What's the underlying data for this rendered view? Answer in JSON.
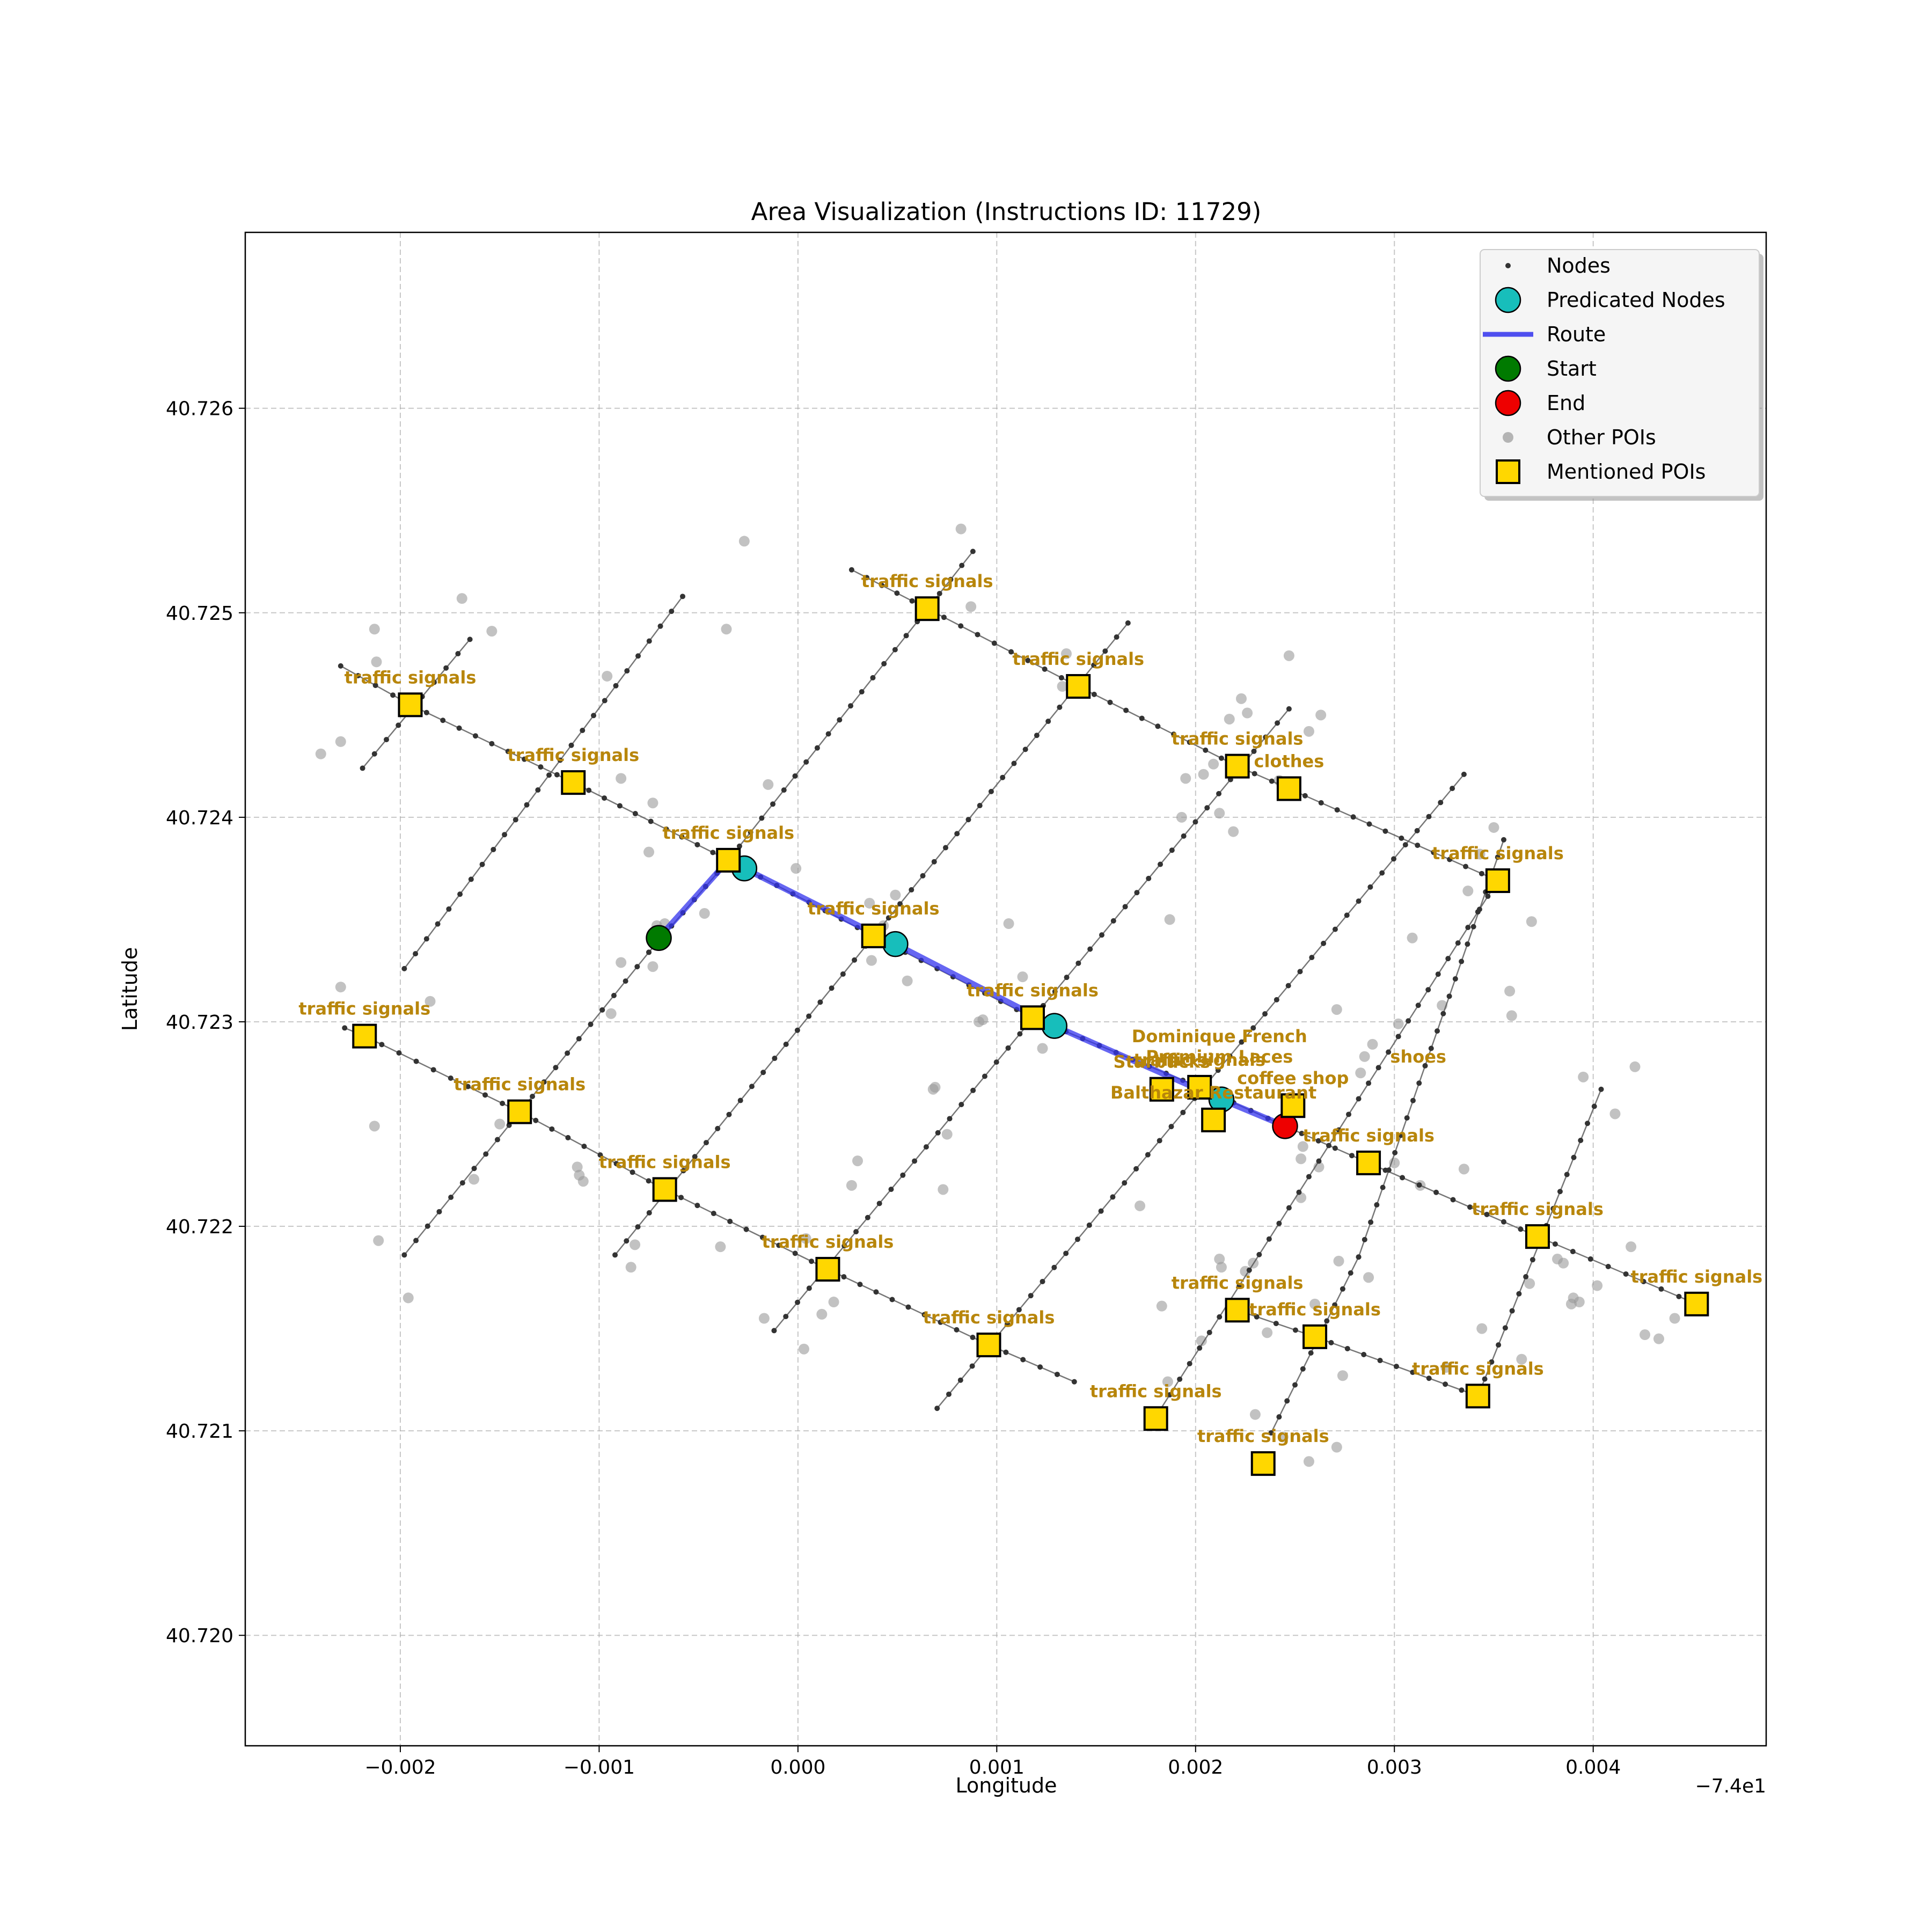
{
  "chart_data": {
    "type": "scatter",
    "title": "Area Visualization (Instructions ID: 11729)",
    "xlabel": "Longitude",
    "ylabel": "Latitude",
    "x_offset_label": "−7.4e1",
    "xlim": [
      -0.00278,
      0.00487
    ],
    "ylim": [
      40.71946,
      40.72686
    ],
    "x_ticks": [
      -0.002,
      -0.001,
      0.0,
      0.001,
      0.002,
      0.003,
      0.004
    ],
    "x_tick_labels": [
      "−0.002",
      "−0.001",
      "0.000",
      "0.001",
      "0.002",
      "0.003",
      "0.004"
    ],
    "y_ticks": [
      40.72,
      40.721,
      40.722,
      40.723,
      40.724,
      40.725,
      40.726
    ],
    "y_tick_labels": [
      "40.720",
      "40.721",
      "40.722",
      "40.723",
      "40.724",
      "40.725",
      "40.726"
    ],
    "grid": true,
    "legend_position": "upper-right",
    "legend": [
      "Nodes",
      "Predicated Nodes",
      "Route",
      "Start",
      "End",
      "Other POIs",
      "Mentioned POIs"
    ],
    "colors": {
      "nodes": "#333333",
      "streets": "#555555",
      "predicated": "#17bebb",
      "route": "#3333ee",
      "start": "#007a00",
      "end": "#ee0000",
      "other_pois": "#999999",
      "mentioned": "#ffd700",
      "poi_label": "#b8860b"
    },
    "streets": [
      [
        [
          -0.0023,
          40.72474
        ],
        [
          -0.00195,
          40.72455
        ],
        [
          -0.00113,
          40.72417
        ],
        [
          -0.00035,
          40.72379
        ],
        [
          0.00038,
          40.72342
        ],
        [
          0.00118,
          40.72302
        ],
        [
          0.00202,
          40.72268
        ],
        [
          0.00245,
          40.72249
        ],
        [
          0.00287,
          40.72231
        ],
        [
          0.00372,
          40.72195
        ],
        [
          0.00452,
          40.72162
        ]
      ],
      [
        [
          -0.00228,
          40.72297
        ],
        [
          -0.00218,
          40.72293
        ],
        [
          -0.0014,
          40.72256
        ],
        [
          -0.00067,
          40.72218
        ],
        [
          0.00015,
          40.72179
        ],
        [
          0.00096,
          40.72142
        ],
        [
          0.00139,
          40.72124
        ]
      ],
      [
        [
          0.00027,
          40.72521
        ],
        [
          0.00065,
          40.72502
        ],
        [
          0.00141,
          40.72464
        ],
        [
          0.00221,
          40.72425
        ],
        [
          0.00247,
          40.72414
        ],
        [
          0.00352,
          40.72369
        ]
      ],
      [
        [
          0.00221,
          40.72159
        ],
        [
          0.0026,
          40.72146
        ],
        [
          0.00342,
          40.72117
        ]
      ],
      [
        [
          -0.00219,
          40.72424
        ],
        [
          -0.00165,
          40.72487
        ]
      ],
      [
        [
          -0.00198,
          40.72186
        ],
        [
          -0.00075,
          40.72334
        ],
        [
          -0.00035,
          40.72379
        ],
        [
          0.00088,
          40.7253
        ]
      ],
      [
        [
          -0.00198,
          40.72326
        ],
        [
          -0.00058,
          40.72508
        ]
      ],
      [
        [
          -0.00092,
          40.72186
        ],
        [
          0.00166,
          40.72495
        ]
      ],
      [
        [
          -0.00012,
          40.72149
        ],
        [
          0.00247,
          40.72453
        ]
      ],
      [
        [
          0.0007,
          40.72111
        ],
        [
          0.00335,
          40.72421
        ]
      ],
      [
        [
          0.00182,
          40.7211
        ],
        [
          0.00352,
          40.72369
        ]
      ],
      [
        [
          0.00238,
          40.72099
        ],
        [
          0.00282,
          40.72185
        ],
        [
          0.00355,
          40.72389
        ]
      ],
      [
        [
          0.00342,
          40.72117
        ],
        [
          0.00404,
          40.72267
        ]
      ]
    ],
    "nodes": {
      "count": 400,
      "description_x": [],
      "description_y": []
    },
    "route": {
      "x": [
        -0.0007,
        -0.00035,
        -0.00027,
        0.00049,
        0.00129,
        0.00213,
        0.00245
      ],
      "y": [
        40.72341,
        40.72379,
        40.72375,
        40.72338,
        40.72298,
        40.72262,
        40.72249
      ]
    },
    "predicated_nodes": {
      "x": [
        -0.00027,
        0.00049,
        0.00129,
        0.00213
      ],
      "y": [
        40.72375,
        40.72338,
        40.72298,
        40.72262
      ]
    },
    "start": {
      "x": -0.0007,
      "y": 40.72341
    },
    "end": {
      "x": 0.00245,
      "y": 40.72249
    },
    "other_pois": {
      "x": [
        -0.0024,
        -0.0023,
        -0.00213,
        -0.00212,
        -0.00169,
        -0.00154,
        -0.0023,
        -0.00185,
        -0.00213,
        -0.00163,
        -0.00096,
        -0.00089,
        -0.00073,
        -0.00075,
        -0.00067,
        -0.00047,
        -0.00036,
        -0.00027,
        -0.00015,
        -1e-05,
        -0.00094,
        -0.00089,
        -0.00073,
        -0.00071,
        -0.00084,
        -0.00111,
        -0.0011,
        -0.00108,
        -0.00082,
        -0.0015,
        -0.00211,
        -0.00196,
        -0.00039,
        -0.00017,
        3e-05,
        4e-05,
        0.00012,
        0.00018,
        0.00027,
        0.0003,
        0.00036,
        0.00043,
        0.00049,
        0.00055,
        0.00045,
        0.00037,
        0.00068,
        0.00069,
        0.00073,
        0.00075,
        0.00082,
        0.00087,
        0.00091,
        0.00093,
        0.00106,
        0.00113,
        0.00123,
        0.00133,
        0.00135,
        0.00187,
        0.00193,
        0.00195,
        0.00204,
        0.00209,
        0.00212,
        0.00219,
        0.00217,
        0.00223,
        0.00226,
        0.00247,
        0.00257,
        0.00263,
        0.00242,
        0.00271,
        0.00289,
        0.00302,
        0.00309,
        0.00324,
        0.00337,
        0.00343,
        0.0035,
        0.00358,
        0.00369,
        0.00359,
        0.00335,
        0.00395,
        0.00411,
        0.00421,
        0.00419,
        0.00385,
        0.00389,
        0.00368,
        0.00382,
        0.00393,
        0.00402,
        0.00426,
        0.00441,
        0.00433,
        0.00254,
        0.00262,
        0.00283,
        0.003,
        0.00313,
        0.00253,
        0.00225,
        0.00213,
        0.00272,
        0.00287,
        0.00183,
        0.00172,
        0.00212,
        0.00253,
        0.00236,
        0.00229,
        0.0026,
        0.00186,
        0.00203,
        0.00244,
        0.00257,
        0.00274,
        0.00326,
        0.00339,
        0.00344,
        0.00364,
        0.0039,
        0.0023,
        0.00271,
        0.00285
      ],
      "y": [
        40.72431,
        40.72437,
        40.72492,
        40.72476,
        40.72507,
        40.72491,
        40.72317,
        40.7231,
        40.72249,
        40.72223,
        40.72469,
        40.72419,
        40.72407,
        40.72383,
        40.72348,
        40.72353,
        40.72492,
        40.72535,
        40.72416,
        40.72375,
        40.72304,
        40.72329,
        40.72327,
        40.72347,
        40.7218,
        40.72229,
        40.72225,
        40.72222,
        40.72191,
        40.7225,
        40.72193,
        40.72165,
        40.7219,
        40.72155,
        40.7214,
        40.72194,
        40.72157,
        40.72163,
        40.7222,
        40.72232,
        40.72358,
        40.72347,
        40.72362,
        40.7232,
        40.7234,
        40.7233,
        40.72267,
        40.72268,
        40.72218,
        40.72245,
        40.72541,
        40.72503,
        40.723,
        40.72301,
        40.72348,
        40.72322,
        40.72287,
        40.72464,
        40.7248,
        40.7235,
        40.724,
        40.72419,
        40.72421,
        40.72426,
        40.72402,
        40.72393,
        40.72448,
        40.72458,
        40.72451,
        40.72479,
        40.72442,
        40.7245,
        40.72418,
        40.72306,
        40.72289,
        40.72299,
        40.72341,
        40.72308,
        40.72364,
        40.72382,
        40.72395,
        40.72315,
        40.72349,
        40.72303,
        40.72228,
        40.72273,
        40.72255,
        40.72278,
        40.7219,
        40.72182,
        40.72162,
        40.72172,
        40.72184,
        40.72163,
        40.72171,
        40.72147,
        40.72155,
        40.72145,
        40.72239,
        40.72229,
        40.72275,
        40.72231,
        40.7222,
        40.72214,
        40.72178,
        40.7218,
        40.72183,
        40.72175,
        40.72161,
        40.7221,
        40.72184,
        40.72233,
        40.72148,
        40.72182,
        40.72162,
        40.72124,
        40.72144,
        40.72097,
        40.72085,
        40.72127,
        40.72131,
        40.72115,
        40.7215,
        40.72135,
        40.72165,
        40.72108,
        40.72092,
        40.72283
      ]
    },
    "mentioned_pois": [
      {
        "x": -0.00195,
        "y": 40.72455,
        "label": "traffic signals"
      },
      {
        "x": -0.00113,
        "y": 40.72417,
        "label": "traffic signals"
      },
      {
        "x": -0.00035,
        "y": 40.72379,
        "label": "traffic signals"
      },
      {
        "x": 0.00065,
        "y": 40.72502,
        "label": "traffic signals"
      },
      {
        "x": 0.00141,
        "y": 40.72464,
        "label": "traffic signals"
      },
      {
        "x": 0.00221,
        "y": 40.72425,
        "label": "traffic signals"
      },
      {
        "x": 0.00247,
        "y": 40.72414,
        "label": "clothes"
      },
      {
        "x": 0.00352,
        "y": 40.72369,
        "label": "traffic signals"
      },
      {
        "x": 0.00038,
        "y": 40.72342,
        "label": "traffic signals"
      },
      {
        "x": 0.00118,
        "y": 40.72302,
        "label": "traffic signals"
      },
      {
        "x": -0.00218,
        "y": 40.72293,
        "label": "traffic signals"
      },
      {
        "x": -0.0014,
        "y": 40.72256,
        "label": "traffic signals"
      },
      {
        "x": -0.00067,
        "y": 40.72218,
        "label": "traffic signals"
      },
      {
        "x": 0.00015,
        "y": 40.72179,
        "label": "traffic signals"
      },
      {
        "x": 0.00096,
        "y": 40.72142,
        "label": "traffic signals"
      },
      {
        "x": 0.00183,
        "y": 40.72267,
        "label": "Starbucks"
      },
      {
        "x": 0.00202,
        "y": 40.72268,
        "label": "traffic signals"
      },
      {
        "x": 0.00209,
        "y": 40.72252,
        "label": "Balthazar Restaurant"
      },
      {
        "x": 0.00249,
        "y": 40.72259,
        "label": "coffee shop"
      },
      {
        "x": 0.00287,
        "y": 40.72231,
        "label": "traffic signals"
      },
      {
        "x": 0.00372,
        "y": 40.72195,
        "label": "traffic signals"
      },
      {
        "x": 0.00452,
        "y": 40.72162,
        "label": "traffic signals"
      },
      {
        "x": 0.00221,
        "y": 40.72159,
        "label": "traffic signals"
      },
      {
        "x": 0.0026,
        "y": 40.72146,
        "label": "traffic signals"
      },
      {
        "x": 0.00342,
        "y": 40.72117,
        "label": "traffic signals"
      },
      {
        "x": 0.0018,
        "y": 40.72106,
        "label": "traffic signals"
      },
      {
        "x": 0.00234,
        "y": 40.72084,
        "label": "traffic signals"
      }
    ],
    "extra_labels": [
      {
        "x": 0.00212,
        "y": 40.7229,
        "label": "Dominique French"
      },
      {
        "x": 0.00212,
        "y": 40.7228,
        "label": "Premium Laces"
      },
      {
        "x": 0.00312,
        "y": 40.7228,
        "label": "shoes"
      }
    ]
  }
}
